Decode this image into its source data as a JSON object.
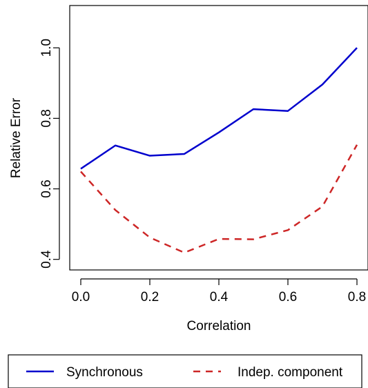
{
  "chart_data": {
    "type": "line",
    "title": "",
    "xlabel": "Correlation",
    "ylabel": "Relative Error",
    "x": [
      0.0,
      0.1,
      0.2,
      0.3,
      0.4,
      0.5,
      0.6,
      0.7,
      0.8
    ],
    "xlim": [
      -0.032,
      0.832
    ],
    "ylim": [
      0.37,
      1.12
    ],
    "xticks": [
      0.0,
      0.2,
      0.4,
      0.6,
      0.8
    ],
    "xtick_labels": [
      "0.0",
      "0.2",
      "0.4",
      "0.6",
      "0.8"
    ],
    "yticks": [
      0.4,
      0.6,
      0.8,
      1.0
    ],
    "ytick_labels": [
      "0.4",
      "0.6",
      "0.8",
      "1.0"
    ],
    "grid": false,
    "legend_position": "bottom",
    "series": [
      {
        "name": "Synchronous",
        "color": "#0000CD",
        "style": "solid",
        "values": [
          0.657,
          0.723,
          0.694,
          0.699,
          0.76,
          0.826,
          0.821,
          0.896,
          1.0
        ]
      },
      {
        "name": "Indep. component",
        "color": "#CD2626",
        "style": "dashed",
        "values": [
          0.649,
          0.54,
          0.462,
          0.419,
          0.458,
          0.457,
          0.483,
          0.55,
          0.725
        ]
      }
    ]
  }
}
